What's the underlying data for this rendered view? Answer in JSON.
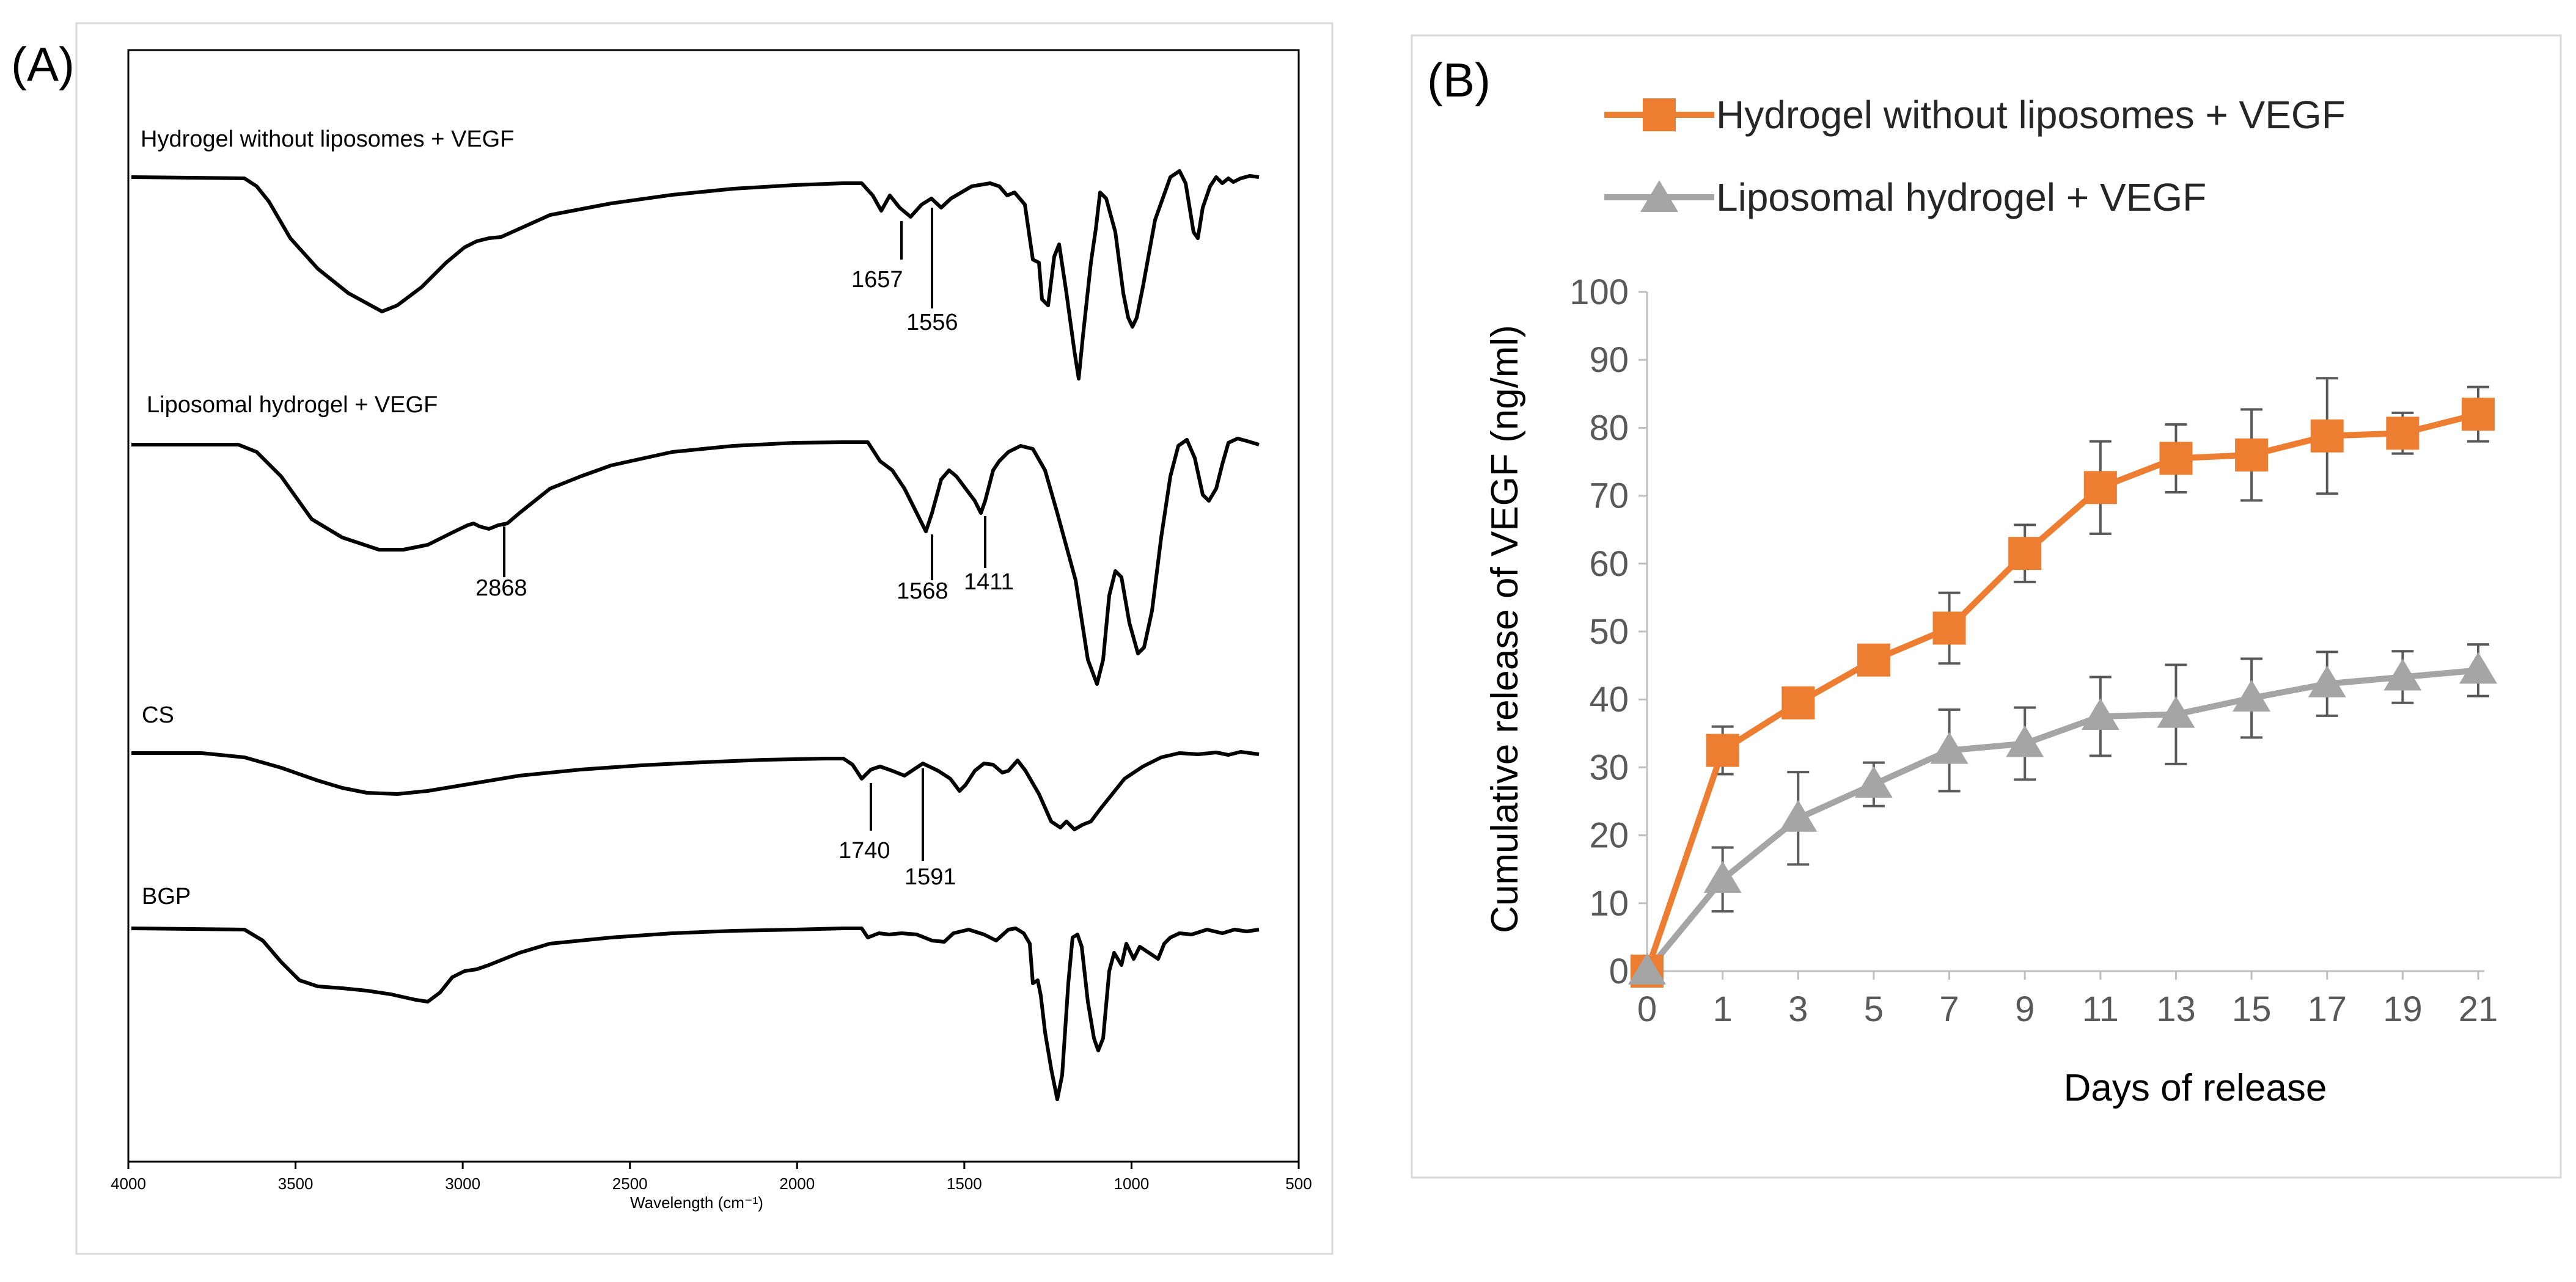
{
  "panels": {
    "a": {
      "letter": "(A)"
    },
    "b": {
      "letter": "(B)"
    }
  },
  "colors": {
    "series_hydrogel": "#ED7D31",
    "series_liposomal": "#A5A5A5",
    "error_bar": "#595959",
    "frame": "#D9D9D9",
    "spectrum": "#000000"
  },
  "chart_data": [
    {
      "type": "line",
      "title": "",
      "xlabel": "Wavelength (cm⁻¹)",
      "ylabel": "",
      "x_ticks": [
        "4000",
        "3500",
        "3000",
        "2500",
        "2000",
        "1500",
        "1000",
        "500"
      ],
      "xlim": [
        4000,
        500
      ],
      "spectra": [
        {
          "name": "Hydrogel without liposomes + VEGF",
          "annotations": [
            "1657",
            "1556"
          ]
        },
        {
          "name": "Liposomal hydrogel + VEGF",
          "annotations": [
            "2868",
            "1568",
            "1411"
          ]
        },
        {
          "name": "CS",
          "annotations": [
            "1740",
            "1591"
          ]
        },
        {
          "name": "BGP",
          "annotations": []
        }
      ]
    },
    {
      "type": "line",
      "title": "",
      "xlabel": "Days of release",
      "ylabel": "Cumulative release of VEGF (ng/ml)",
      "x_ticks": [
        "0",
        "1",
        "3",
        "5",
        "7",
        "9",
        "11",
        "13",
        "15",
        "17",
        "19",
        "21"
      ],
      "y_ticks": [
        "0",
        "10",
        "20",
        "30",
        "40",
        "50",
        "60",
        "70",
        "80",
        "90",
        "100"
      ],
      "ylim": [
        0,
        100
      ],
      "x": [
        0,
        1,
        3,
        5,
        7,
        9,
        11,
        13,
        15,
        17,
        19,
        21
      ],
      "series": [
        {
          "name": "Hydrogel without liposomes + VEGF",
          "marker": "square",
          "values": [
            0,
            32.5,
            39.5,
            45.8,
            50.5,
            61.5,
            71.2,
            75.5,
            76,
            78.8,
            79.2,
            82
          ],
          "errors": [
            0,
            3.5,
            0,
            0,
            5.2,
            4.2,
            6.8,
            5,
            6.7,
            8.5,
            3,
            4
          ]
        },
        {
          "name": "Liposomal hydrogel + VEGF",
          "marker": "triangle",
          "values": [
            0,
            13.5,
            22.5,
            27.5,
            32.5,
            33.5,
            37.5,
            37.8,
            40.2,
            42.3,
            43.3,
            44.3
          ],
          "errors": [
            0,
            4.7,
            6.8,
            3.2,
            6,
            5.3,
            5.8,
            7.3,
            5.8,
            4.7,
            3.8,
            3.8
          ]
        }
      ]
    }
  ]
}
